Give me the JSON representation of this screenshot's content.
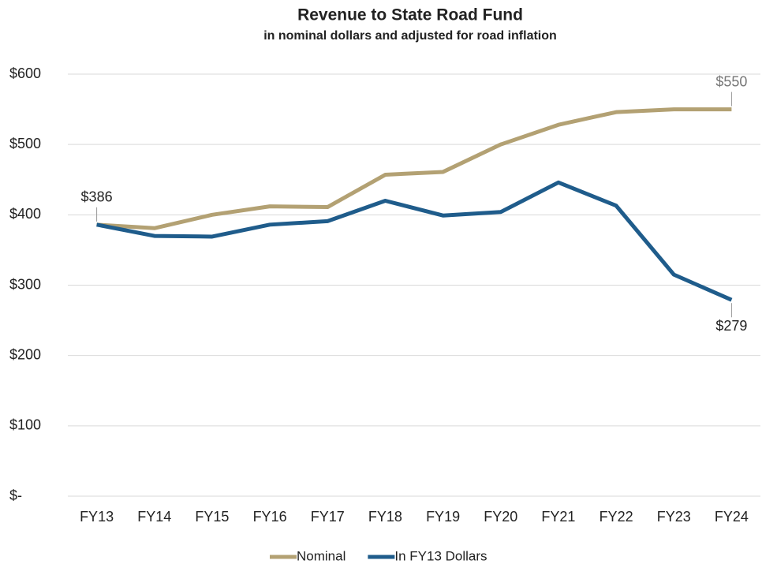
{
  "chart_data": {
    "type": "line",
    "title": "Revenue to State Road Fund",
    "subtitle": "in nominal dollars and adjusted for road inflation",
    "categories": [
      "FY13",
      "FY14",
      "FY15",
      "FY16",
      "FY17",
      "FY18",
      "FY19",
      "FY20",
      "FY21",
      "FY22",
      "FY23",
      "FY24"
    ],
    "series": [
      {
        "name": "Nominal",
        "color": "#b3a173",
        "values": [
          386,
          381,
          400,
          412,
          411,
          457,
          461,
          500,
          528,
          546,
          550,
          550
        ],
        "value_labels": [
          null,
          null,
          null,
          null,
          null,
          null,
          null,
          null,
          null,
          null,
          null,
          "$550"
        ]
      },
      {
        "name": "In FY13 Dollars",
        "color": "#1f5c8b",
        "values": [
          386,
          370,
          369,
          386,
          391,
          420,
          399,
          404,
          446,
          413,
          315,
          279
        ],
        "value_labels": [
          "$386",
          null,
          null,
          null,
          null,
          null,
          null,
          null,
          null,
          null,
          null,
          "$279"
        ]
      }
    ],
    "ylim": [
      0,
      600
    ],
    "yticks": [
      {
        "value": 0,
        "label": "$-"
      },
      {
        "value": 100,
        "label": "$100"
      },
      {
        "value": 200,
        "label": "$200"
      },
      {
        "value": 300,
        "label": "$300"
      },
      {
        "value": 400,
        "label": "$400"
      },
      {
        "value": 500,
        "label": "$500"
      },
      {
        "value": 600,
        "label": "$600"
      }
    ],
    "grid": true,
    "legend": "bottom"
  }
}
